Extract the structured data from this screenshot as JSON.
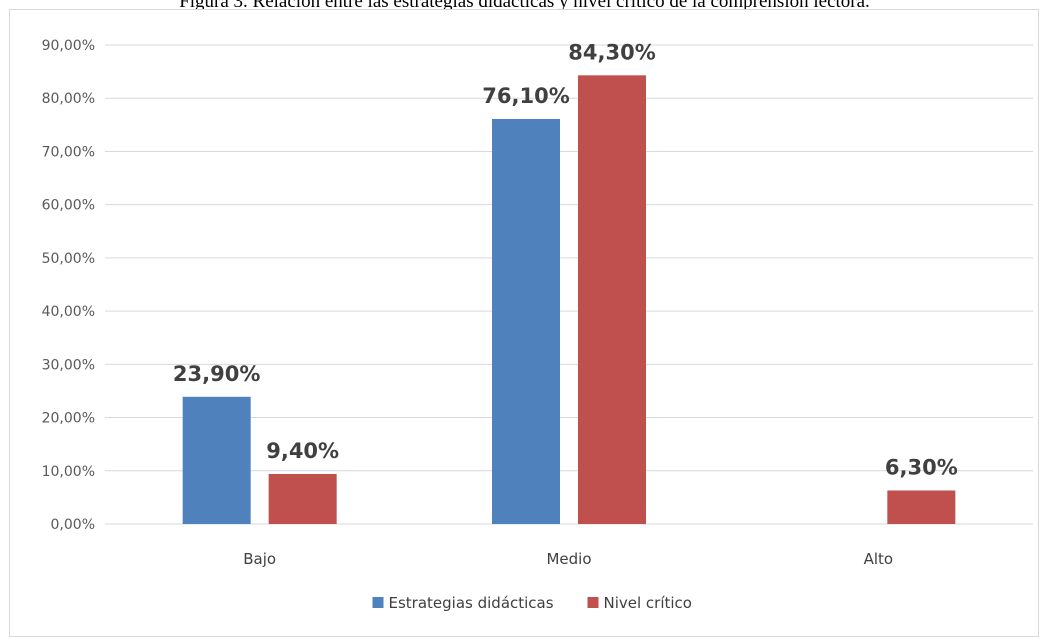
{
  "caption": "Figura 3. Relación entre las estrategias didácticas y nivel crítico de la comprensión lectora.",
  "colors": {
    "series1": "#4f81bd",
    "series2": "#c0504d",
    "grid": "#d9d9d9",
    "text": "#595959"
  },
  "chart_data": {
    "type": "bar",
    "categories": [
      "Bajo",
      "Medio",
      "Alto"
    ],
    "series": [
      {
        "name": "Estrategias didácticas",
        "values": [
          23.9,
          76.1,
          null
        ],
        "labels": [
          "23,90%",
          "76,10%",
          ""
        ]
      },
      {
        "name": "Nivel crítico",
        "values": [
          9.4,
          84.3,
          6.3
        ],
        "labels": [
          "9,40%",
          "84,30%",
          "6,30%"
        ]
      }
    ],
    "ylim": [
      0,
      90
    ],
    "yticks": [
      0,
      10,
      20,
      30,
      40,
      50,
      60,
      70,
      80,
      90
    ],
    "ytick_labels": [
      "0,00%",
      "10,00%",
      "20,00%",
      "30,00%",
      "40,00%",
      "50,00%",
      "60,00%",
      "70,00%",
      "80,00%",
      "90,00%"
    ],
    "grid": true,
    "legend": "bottom",
    "title": "",
    "xlabel": "",
    "ylabel": ""
  }
}
